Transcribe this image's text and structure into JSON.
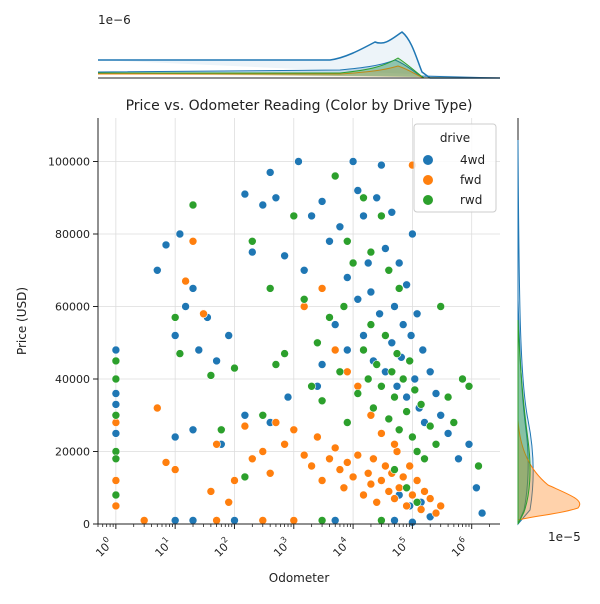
{
  "colors": {
    "4wd": "#1f77b4",
    "fwd": "#ff7f0e",
    "rwd": "#2ca02c",
    "grid": "#dddddd",
    "axis": "#222222"
  },
  "chart_data": {
    "type": "scatter",
    "title": "Price vs. Odometer Reading (Color by Drive Type)",
    "xlabel": "Odometer",
    "ylabel": "Price (USD)",
    "x_scale": "log",
    "xlim": [
      0.5,
      3000000
    ],
    "ylim": [
      0,
      112000
    ],
    "x_ticks": [
      {
        "value": 1,
        "label": "10",
        "exp": "0"
      },
      {
        "value": 10,
        "label": "10",
        "exp": "1"
      },
      {
        "value": 100,
        "label": "10",
        "exp": "2"
      },
      {
        "value": 1000,
        "label": "10",
        "exp": "3"
      },
      {
        "value": 10000,
        "label": "10",
        "exp": "4"
      },
      {
        "value": 100000,
        "label": "10",
        "exp": "5"
      },
      {
        "value": 1000000,
        "label": "10",
        "exp": "6"
      }
    ],
    "y_ticks": [
      {
        "value": 0,
        "label": "0"
      },
      {
        "value": 20000,
        "label": "20000"
      },
      {
        "value": 40000,
        "label": "40000"
      },
      {
        "value": 60000,
        "label": "60000"
      },
      {
        "value": 80000,
        "label": "80000"
      },
      {
        "value": 100000,
        "label": "100000"
      }
    ],
    "grid": true,
    "legend": {
      "title": "drive",
      "placement": "top-right",
      "entries": [
        "4wd",
        "fwd",
        "rwd"
      ]
    },
    "top_marginal_offset_label": "1e−6",
    "right_marginal_offset_label": "1e−5",
    "series": [
      {
        "name": "4wd",
        "points": [
          [
            1,
            48000
          ],
          [
            1,
            36000
          ],
          [
            1,
            33000
          ],
          [
            1,
            25000
          ],
          [
            1,
            12000
          ],
          [
            5,
            70000
          ],
          [
            7,
            77000
          ],
          [
            10,
            52000
          ],
          [
            12,
            80000
          ],
          [
            15,
            60000
          ],
          [
            20,
            65000
          ],
          [
            25,
            48000
          ],
          [
            35,
            57000
          ],
          [
            50,
            45000
          ],
          [
            80,
            52000
          ],
          [
            150,
            91000
          ],
          [
            200,
            75000
          ],
          [
            300,
            88000
          ],
          [
            400,
            97000
          ],
          [
            500,
            90000
          ],
          [
            700,
            74000
          ],
          [
            1200,
            100000
          ],
          [
            1500,
            70000
          ],
          [
            2000,
            85000
          ],
          [
            3000,
            89000
          ],
          [
            4000,
            78000
          ],
          [
            6000,
            82000
          ],
          [
            8000,
            68000
          ],
          [
            10000,
            100000
          ],
          [
            12000,
            92000
          ],
          [
            15000,
            85000
          ],
          [
            18000,
            72000
          ],
          [
            20000,
            64000
          ],
          [
            25000,
            90000
          ],
          [
            30000,
            99000
          ],
          [
            35000,
            76000
          ],
          [
            40000,
            70000
          ],
          [
            45000,
            86000
          ],
          [
            50000,
            60000
          ],
          [
            60000,
            72000
          ],
          [
            70000,
            55000
          ],
          [
            80000,
            66000
          ],
          [
            100000,
            80000
          ],
          [
            120000,
            58000
          ],
          [
            150000,
            48000
          ],
          [
            200000,
            42000
          ],
          [
            250000,
            36000
          ],
          [
            300000,
            30000
          ],
          [
            400000,
            25000
          ],
          [
            600000,
            18000
          ],
          [
            900000,
            22000
          ],
          [
            1200000,
            10000
          ],
          [
            1500000,
            3000
          ],
          [
            5000,
            55000
          ],
          [
            8000,
            48000
          ],
          [
            12000,
            62000
          ],
          [
            15000,
            52000
          ],
          [
            22000,
            45000
          ],
          [
            28000,
            58000
          ],
          [
            35000,
            42000
          ],
          [
            45000,
            50000
          ],
          [
            55000,
            38000
          ],
          [
            65000,
            46000
          ],
          [
            80000,
            35000
          ],
          [
            95000,
            52000
          ],
          [
            110000,
            40000
          ],
          [
            130000,
            32000
          ],
          [
            160000,
            28000
          ],
          [
            3000,
            44000
          ],
          [
            2500,
            38000
          ],
          [
            800,
            35000
          ],
          [
            400,
            28000
          ],
          [
            150,
            30000
          ],
          [
            60,
            22000
          ],
          [
            20,
            26000
          ],
          [
            10,
            24000
          ],
          [
            30000,
            12000
          ],
          [
            60000,
            8000
          ],
          [
            90000,
            5000
          ],
          [
            140000,
            6000
          ],
          [
            200000,
            2000
          ],
          [
            10,
            1000
          ],
          [
            20,
            1000
          ],
          [
            50,
            1000
          ],
          [
            100,
            1000
          ],
          [
            1000,
            1000
          ],
          [
            5000,
            1000
          ],
          [
            50000,
            1000
          ],
          [
            100000,
            500
          ]
        ]
      },
      {
        "name": "fwd",
        "points": [
          [
            1,
            28000
          ],
          [
            1,
            12000
          ],
          [
            1,
            5000
          ],
          [
            3,
            1000
          ],
          [
            5,
            32000
          ],
          [
            7,
            17000
          ],
          [
            10,
            15000
          ],
          [
            15,
            67000
          ],
          [
            20,
            78000
          ],
          [
            30,
            58000
          ],
          [
            40,
            9000
          ],
          [
            50,
            22000
          ],
          [
            80,
            6000
          ],
          [
            100,
            12000
          ],
          [
            150,
            27000
          ],
          [
            200,
            18000
          ],
          [
            300,
            20000
          ],
          [
            400,
            14000
          ],
          [
            500,
            28000
          ],
          [
            700,
            22000
          ],
          [
            1000,
            26000
          ],
          [
            1500,
            19000
          ],
          [
            2000,
            16000
          ],
          [
            2500,
            24000
          ],
          [
            3000,
            12000
          ],
          [
            4000,
            18000
          ],
          [
            5000,
            21000
          ],
          [
            6000,
            15000
          ],
          [
            7000,
            10000
          ],
          [
            8000,
            17000
          ],
          [
            10000,
            13000
          ],
          [
            12000,
            19000
          ],
          [
            15000,
            8000
          ],
          [
            18000,
            14000
          ],
          [
            20000,
            11000
          ],
          [
            22000,
            18000
          ],
          [
            25000,
            6000
          ],
          [
            30000,
            12000
          ],
          [
            35000,
            16000
          ],
          [
            40000,
            9000
          ],
          [
            45000,
            14000
          ],
          [
            50000,
            7000
          ],
          [
            55000,
            20000
          ],
          [
            60000,
            10000
          ],
          [
            70000,
            13000
          ],
          [
            80000,
            5000
          ],
          [
            90000,
            16000
          ],
          [
            100000,
            8000
          ],
          [
            120000,
            12000
          ],
          [
            140000,
            4000
          ],
          [
            160000,
            9000
          ],
          [
            200000,
            7000
          ],
          [
            250000,
            3000
          ],
          [
            300000,
            5000
          ],
          [
            100000,
            99000
          ],
          [
            3000,
            65000
          ],
          [
            1500,
            60000
          ],
          [
            5000,
            48000
          ],
          [
            8000,
            42000
          ],
          [
            12000,
            38000
          ],
          [
            20000,
            30000
          ],
          [
            30000,
            25000
          ],
          [
            50000,
            22000
          ],
          [
            1000,
            1000
          ],
          [
            300,
            1000
          ],
          [
            50,
            1000
          ]
        ]
      },
      {
        "name": "rwd",
        "points": [
          [
            1,
            45000
          ],
          [
            1,
            40000
          ],
          [
            1,
            30000
          ],
          [
            1,
            20000
          ],
          [
            1,
            18000
          ],
          [
            1,
            8000
          ],
          [
            10,
            57000
          ],
          [
            12,
            47000
          ],
          [
            20,
            88000
          ],
          [
            40,
            41000
          ],
          [
            60,
            26000
          ],
          [
            100,
            43000
          ],
          [
            150,
            13000
          ],
          [
            200,
            78000
          ],
          [
            300,
            30000
          ],
          [
            400,
            65000
          ],
          [
            500,
            44000
          ],
          [
            700,
            47000
          ],
          [
            1000,
            85000
          ],
          [
            1500,
            62000
          ],
          [
            2000,
            38000
          ],
          [
            2500,
            50000
          ],
          [
            3000,
            34000
          ],
          [
            4000,
            57000
          ],
          [
            5000,
            96000
          ],
          [
            6000,
            42000
          ],
          [
            7000,
            60000
          ],
          [
            8000,
            28000
          ],
          [
            10000,
            72000
          ],
          [
            12000,
            36000
          ],
          [
            15000,
            48000
          ],
          [
            18000,
            40000
          ],
          [
            20000,
            55000
          ],
          [
            22000,
            32000
          ],
          [
            25000,
            44000
          ],
          [
            30000,
            38000
          ],
          [
            35000,
            52000
          ],
          [
            40000,
            29000
          ],
          [
            45000,
            42000
          ],
          [
            50000,
            35000
          ],
          [
            55000,
            47000
          ],
          [
            60000,
            26000
          ],
          [
            70000,
            40000
          ],
          [
            80000,
            31000
          ],
          [
            90000,
            45000
          ],
          [
            100000,
            24000
          ],
          [
            110000,
            37000
          ],
          [
            120000,
            20000
          ],
          [
            140000,
            33000
          ],
          [
            160000,
            18000
          ],
          [
            200000,
            27000
          ],
          [
            250000,
            22000
          ],
          [
            300000,
            60000
          ],
          [
            400000,
            35000
          ],
          [
            500000,
            28000
          ],
          [
            700000,
            40000
          ],
          [
            900000,
            38000
          ],
          [
            1300000,
            16000
          ],
          [
            8000,
            78000
          ],
          [
            20000,
            75000
          ],
          [
            40000,
            70000
          ],
          [
            60000,
            65000
          ],
          [
            30000,
            85000
          ],
          [
            15000,
            90000
          ],
          [
            50000,
            15000
          ],
          [
            80000,
            10000
          ],
          [
            120000,
            6000
          ],
          [
            3000,
            1000
          ],
          [
            30000,
            1000
          ]
        ]
      }
    ]
  }
}
